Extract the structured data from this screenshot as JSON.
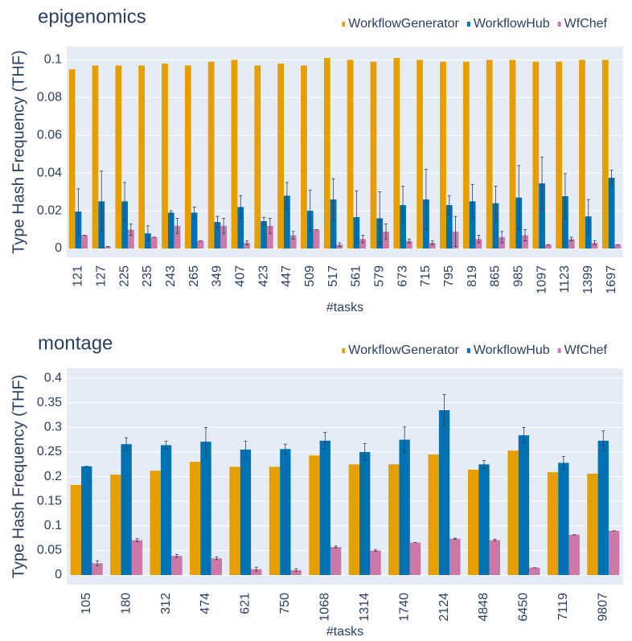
{
  "chart_data": [
    {
      "type": "bar",
      "title": "epigenomics",
      "x_label": "#tasks",
      "y_label": "Type Hash Frequency (THF)",
      "categories": [
        "121",
        "127",
        "225",
        "235",
        "243",
        "265",
        "349",
        "407",
        "423",
        "447",
        "509",
        "517",
        "561",
        "579",
        "673",
        "715",
        "795",
        "819",
        "865",
        "985",
        "1097",
        "1123",
        "1399",
        "1697"
      ],
      "series": [
        {
          "name": "WorkflowGenerator",
          "color": "#E69F00",
          "values": [
            0.095,
            0.097,
            0.097,
            0.097,
            0.098,
            0.097,
            0.099,
            0.1,
            0.097,
            0.098,
            0.097,
            0.101,
            0.1,
            0.099,
            0.101,
            0.1,
            0.099,
            0.099,
            0.1,
            0.1,
            0.099,
            0.099,
            0.1,
            0.1
          ]
        },
        {
          "name": "WorkflowHub",
          "color": "#0072B2",
          "values": [
            0.0196,
            0.025,
            0.025,
            0.008,
            0.019,
            0.019,
            0.014,
            0.022,
            0.0145,
            0.028,
            0.02,
            0.026,
            0.0166,
            0.016,
            0.023,
            0.026,
            0.023,
            0.025,
            0.024,
            0.027,
            0.0345,
            0.0277,
            0.017,
            0.0375
          ],
          "errors": [
            0.012,
            0.016,
            0.01,
            0.004,
            0.001,
            0.003,
            0.003,
            0.006,
            0.002,
            0.007,
            0.011,
            0.011,
            0.014,
            0.014,
            0.01,
            0.016,
            0.005,
            0.009,
            0.009,
            0.017,
            0.014,
            0.012,
            0.009,
            0.004
          ]
        },
        {
          "name": "WfChef",
          "color": "#CC79A7",
          "values": [
            0.007,
            0.001,
            0.01,
            0.006,
            0.012,
            0.004,
            0.012,
            0.003,
            0.012,
            0.007,
            0.01,
            0.002,
            0.005,
            0.009,
            0.004,
            0.003,
            0.009,
            0.005,
            0.006,
            0.007,
            0.002,
            0.005,
            0.003,
            0.002
          ],
          "errors": [
            0,
            0,
            0.003,
            0,
            0.004,
            0,
            0.004,
            0.001,
            0.004,
            0.002,
            0,
            0.001,
            0.002,
            0.004,
            0.001,
            0.001,
            0.008,
            0.002,
            0.003,
            0.003,
            0,
            0.001,
            0.001,
            0
          ]
        }
      ],
      "ylim": [
        -0.0047,
        0.107
      ],
      "yticks": [
        0,
        0.02,
        0.04,
        0.06,
        0.08,
        0.1
      ],
      "grid": true,
      "legend": "top-right"
    },
    {
      "type": "bar",
      "title": "montage",
      "x_label": "#tasks",
      "y_label": "Type Hash Frequency (THF)",
      "categories": [
        "105",
        "180",
        "312",
        "474",
        "621",
        "750",
        "1068",
        "1314",
        "1740",
        "2124",
        "4848",
        "6450",
        "7119",
        "9807"
      ],
      "series": [
        {
          "name": "WorkflowGenerator",
          "color": "#E69F00",
          "values": [
            0.183,
            0.204,
            0.212,
            0.23,
            0.22,
            0.22,
            0.243,
            0.225,
            0.225,
            0.245,
            0.214,
            0.253,
            0.209,
            0.206
          ]
        },
        {
          "name": "WorkflowHub",
          "color": "#0072B2",
          "values": [
            0.221,
            0.266,
            0.264,
            0.271,
            0.255,
            0.256,
            0.273,
            0.25,
            0.275,
            0.335,
            0.225,
            0.284,
            0.228,
            0.273
          ],
          "errors": [
            0,
            0.013,
            0.008,
            0.029,
            0.017,
            0.01,
            0.017,
            0.017,
            0.026,
            0.032,
            0.008,
            0.016,
            0.013,
            0.02
          ]
        },
        {
          "name": "WfChef",
          "color": "#CC79A7",
          "values": [
            0.024,
            0.071,
            0.039,
            0.034,
            0.012,
            0.01,
            0.057,
            0.05,
            0.066,
            0.074,
            0.071,
            0.015,
            0.082,
            0.09
          ],
          "errors": [
            0.005,
            0.003,
            0.003,
            0.003,
            0.004,
            0.003,
            0.002,
            0.002,
            0,
            0.001,
            0.002,
            0,
            0,
            0
          ]
        }
      ],
      "ylim": [
        -0.0196,
        0.42
      ],
      "yticks": [
        0,
        0.05,
        0.1,
        0.15,
        0.2,
        0.25,
        0.3,
        0.35,
        0.4
      ],
      "grid": true,
      "legend": "top-right"
    }
  ]
}
